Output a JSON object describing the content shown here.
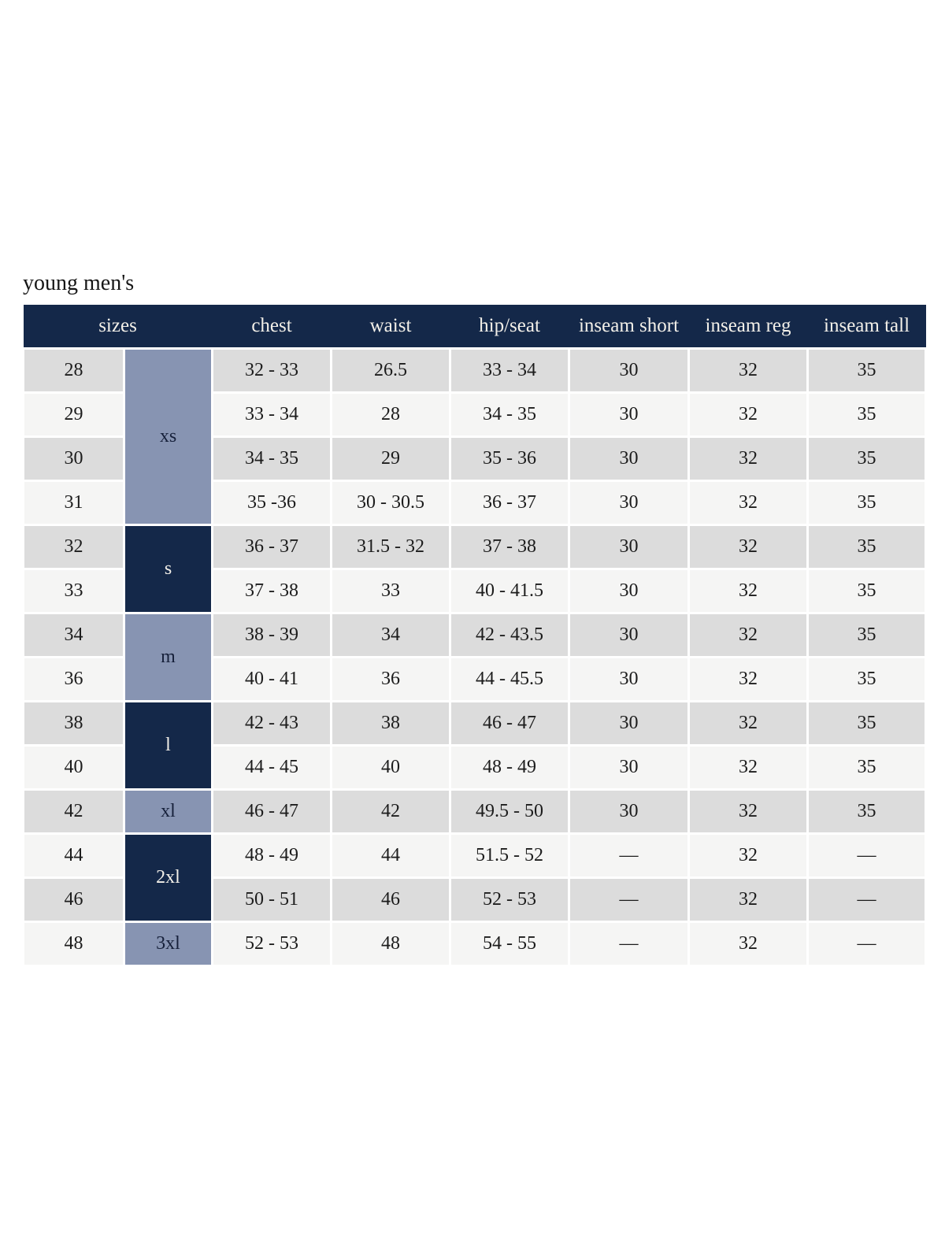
{
  "title": "young men's",
  "colors": {
    "header_bg": "#142849",
    "header_text": "#f3f0e9",
    "group_light_bg": "#8794b2",
    "group_dark_bg": "#142849",
    "group_light_text": "#16203a",
    "group_dark_text": "#f3f0e9",
    "row_odd_bg": "#dcdcdc",
    "row_even_bg": "#f5f5f4",
    "cell_text": "#1c1c1c"
  },
  "table": {
    "headers": [
      {
        "label": "sizes",
        "colspan": 2
      },
      {
        "label": "chest"
      },
      {
        "label": "waist"
      },
      {
        "label": "hip/seat"
      },
      {
        "label": "inseam short"
      },
      {
        "label": "inseam reg"
      },
      {
        "label": "inseam tall"
      }
    ],
    "size_groups": [
      {
        "label": "xs",
        "span": 4,
        "variant": "light"
      },
      {
        "label": "s",
        "span": 2,
        "variant": "dark"
      },
      {
        "label": "m",
        "span": 2,
        "variant": "light"
      },
      {
        "label": "l",
        "span": 2,
        "variant": "dark"
      },
      {
        "label": "xl",
        "span": 1,
        "variant": "light"
      },
      {
        "label": "2xl",
        "span": 2,
        "variant": "dark"
      },
      {
        "label": "3xl",
        "span": 1,
        "variant": "light"
      }
    ],
    "rows": [
      {
        "size": "28",
        "chest": "32 - 33",
        "waist": "26.5",
        "hip_seat": "33 - 34",
        "inseam_short": "30",
        "inseam_reg": "32",
        "inseam_tall": "35"
      },
      {
        "size": "29",
        "chest": "33 - 34",
        "waist": "28",
        "hip_seat": "34 - 35",
        "inseam_short": "30",
        "inseam_reg": "32",
        "inseam_tall": "35"
      },
      {
        "size": "30",
        "chest": "34 - 35",
        "waist": "29",
        "hip_seat": "35 - 36",
        "inseam_short": "30",
        "inseam_reg": "32",
        "inseam_tall": "35"
      },
      {
        "size": "31",
        "chest": "35 -36",
        "waist": "30 - 30.5",
        "hip_seat": "36 - 37",
        "inseam_short": "30",
        "inseam_reg": "32",
        "inseam_tall": "35"
      },
      {
        "size": "32",
        "chest": "36 - 37",
        "waist": "31.5 - 32",
        "hip_seat": "37 - 38",
        "inseam_short": "30",
        "inseam_reg": "32",
        "inseam_tall": "35"
      },
      {
        "size": "33",
        "chest": "37 - 38",
        "waist": "33",
        "hip_seat": "40 - 41.5",
        "inseam_short": "30",
        "inseam_reg": "32",
        "inseam_tall": "35"
      },
      {
        "size": "34",
        "chest": "38 - 39",
        "waist": "34",
        "hip_seat": "42 - 43.5",
        "inseam_short": "30",
        "inseam_reg": "32",
        "inseam_tall": "35"
      },
      {
        "size": "36",
        "chest": "40 - 41",
        "waist": "36",
        "hip_seat": "44 - 45.5",
        "inseam_short": "30",
        "inseam_reg": "32",
        "inseam_tall": "35"
      },
      {
        "size": "38",
        "chest": "42 - 43",
        "waist": "38",
        "hip_seat": "46 - 47",
        "inseam_short": "30",
        "inseam_reg": "32",
        "inseam_tall": "35"
      },
      {
        "size": "40",
        "chest": "44 - 45",
        "waist": "40",
        "hip_seat": "48 - 49",
        "inseam_short": "30",
        "inseam_reg": "32",
        "inseam_tall": "35"
      },
      {
        "size": "42",
        "chest": "46 - 47",
        "waist": "42",
        "hip_seat": "49.5 - 50",
        "inseam_short": "30",
        "inseam_reg": "32",
        "inseam_tall": "35"
      },
      {
        "size": "44",
        "chest": "48 - 49",
        "waist": "44",
        "hip_seat": "51.5 - 52",
        "inseam_short": "—",
        "inseam_reg": "32",
        "inseam_tall": "—"
      },
      {
        "size": "46",
        "chest": "50 - 51",
        "waist": "46",
        "hip_seat": "52 - 53",
        "inseam_short": "—",
        "inseam_reg": "32",
        "inseam_tall": "—"
      },
      {
        "size": "48",
        "chest": "52 - 53",
        "waist": "48",
        "hip_seat": "54 - 55",
        "inseam_short": "—",
        "inseam_reg": "32",
        "inseam_tall": "—"
      }
    ]
  }
}
